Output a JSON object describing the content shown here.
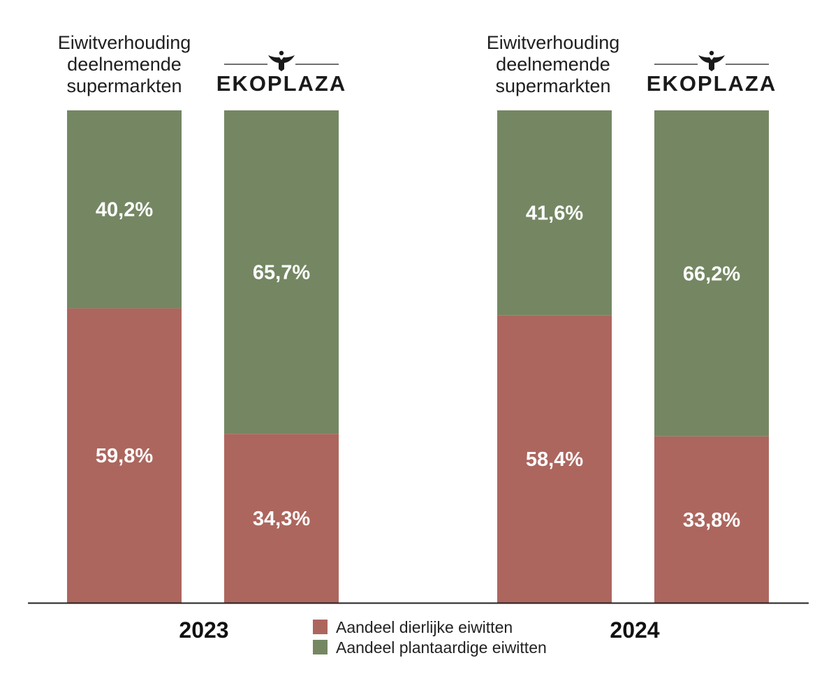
{
  "colors": {
    "animal": "#ac665e",
    "plant": "#748762",
    "axis": "#222222",
    "logo": "#1a1a1a"
  },
  "chart_data": {
    "type": "bar",
    "stacked": true,
    "ylim": [
      0,
      100
    ],
    "unit": "%",
    "groups": [
      {
        "year": "2023",
        "bars": [
          {
            "label_lines": [
              "Eiwitverhouding",
              "deelnemende",
              "supermarkten"
            ],
            "logo": null,
            "values": {
              "animal": 59.8,
              "plant": 40.2
            },
            "value_labels": {
              "animal": "59,8%",
              "plant": "40,2%"
            }
          },
          {
            "label_lines": [],
            "logo": "EKOPLAZA",
            "values": {
              "animal": 34.3,
              "plant": 65.7
            },
            "value_labels": {
              "animal": "34,3%",
              "plant": "65,7%"
            }
          }
        ]
      },
      {
        "year": "2024",
        "bars": [
          {
            "label_lines": [
              "Eiwitverhouding",
              "deelnemende",
              "supermarkten"
            ],
            "logo": null,
            "values": {
              "animal": 58.4,
              "plant": 41.6
            },
            "value_labels": {
              "animal": "58,4%",
              "plant": "41,6%"
            }
          },
          {
            "label_lines": [],
            "logo": "EKOPLAZA",
            "values": {
              "animal": 33.8,
              "plant": 66.2
            },
            "value_labels": {
              "animal": "33,8%",
              "plant": "66,2%"
            }
          }
        ]
      }
    ],
    "legend": [
      {
        "key": "animal",
        "label": "Aandeel dierlijke eiwitten"
      },
      {
        "key": "plant",
        "label": "Aandeel plantaardige eiwitten"
      }
    ],
    "legend_position": "bottom-center"
  }
}
